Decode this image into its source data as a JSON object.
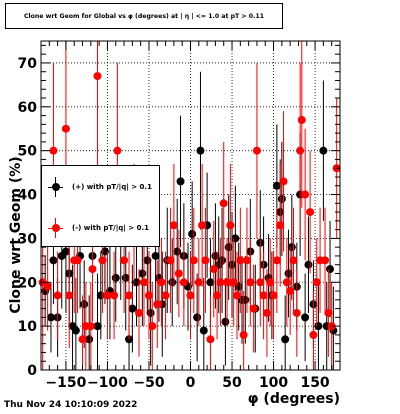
{
  "title": "Clone wrt Geom for Global vs φ (degrees) at |  η | <= 1.0 at pT > 0.11",
  "timestamp": "Thu Nov 24 10:10:09 2022",
  "chart_data": {
    "type": "scatter",
    "title": "Clone wrt Geom for Global vs φ (degrees) at |  η | <= 1.0 at pT > 0.11",
    "xlabel": "φ (degrees)",
    "ylabel": "Clone wrt Geom (%)",
    "xlim": [
      -180,
      180
    ],
    "ylim": [
      0,
      75
    ],
    "xticks": [
      -150,
      -100,
      -50,
      0,
      50,
      100,
      150
    ],
    "yticks": [
      0,
      10,
      20,
      30,
      40,
      50,
      60,
      70
    ],
    "grid": true,
    "legend_position": "left-middle",
    "series": [
      {
        "name": "(+) with pT/|q| > 0.1",
        "color": "#000000",
        "points": [
          {
            "x": -175,
            "y": 18,
            "err": 8
          },
          {
            "x": -168,
            "y": 12,
            "err": 8
          },
          {
            "x": -165,
            "y": 25,
            "err": 10
          },
          {
            "x": -160,
            "y": 12,
            "err": 9
          },
          {
            "x": -155,
            "y": 26,
            "err": 12
          },
          {
            "x": -150,
            "y": 27,
            "err": 14
          },
          {
            "x": -146,
            "y": 22,
            "err": 12
          },
          {
            "x": -142,
            "y": 10,
            "err": 14
          },
          {
            "x": -138,
            "y": 9,
            "err": 12
          },
          {
            "x": -133,
            "y": 26,
            "err": 12
          },
          {
            "x": -128,
            "y": 15,
            "err": 10
          },
          {
            "x": -122,
            "y": 7,
            "err": 10
          },
          {
            "x": -118,
            "y": 26,
            "err": 12
          },
          {
            "x": -112,
            "y": 10,
            "err": 12
          },
          {
            "x": -108,
            "y": 17,
            "err": 10
          },
          {
            "x": -103,
            "y": 27,
            "err": 12
          },
          {
            "x": -97,
            "y": 18,
            "err": 11
          },
          {
            "x": -90,
            "y": 21,
            "err": 10
          },
          {
            "x": -84,
            "y": 31,
            "err": 15
          },
          {
            "x": -78,
            "y": 21,
            "err": 12
          },
          {
            "x": -74,
            "y": 7,
            "err": 12
          },
          {
            "x": -70,
            "y": 14,
            "err": 10
          },
          {
            "x": -65,
            "y": 20,
            "err": 10
          },
          {
            "x": -58,
            "y": 22,
            "err": 12
          },
          {
            "x": -52,
            "y": 25,
            "err": 12
          },
          {
            "x": -48,
            "y": 13,
            "err": 12
          },
          {
            "x": -42,
            "y": 26,
            "err": 12
          },
          {
            "x": -38,
            "y": 21,
            "err": 10
          },
          {
            "x": -34,
            "y": 15,
            "err": 12
          },
          {
            "x": -28,
            "y": 25,
            "err": 12
          },
          {
            "x": -22,
            "y": 20,
            "err": 10
          },
          {
            "x": -16,
            "y": 27,
            "err": 12
          },
          {
            "x": -12,
            "y": 43,
            "err": 15
          },
          {
            "x": -8,
            "y": 26,
            "err": 12
          },
          {
            "x": -3,
            "y": 19,
            "err": 10
          },
          {
            "x": 2,
            "y": 31,
            "err": 12
          },
          {
            "x": 8,
            "y": 12,
            "err": 10
          },
          {
            "x": 12,
            "y": 50,
            "err": 18
          },
          {
            "x": 16,
            "y": 9,
            "err": 12
          },
          {
            "x": 20,
            "y": 33,
            "err": 12
          },
          {
            "x": 24,
            "y": 20,
            "err": 10
          },
          {
            "x": 30,
            "y": 26,
            "err": 12
          },
          {
            "x": 34,
            "y": 24,
            "err": 11
          },
          {
            "x": 38,
            "y": 25,
            "err": 12
          },
          {
            "x": 42,
            "y": 11,
            "err": 10
          },
          {
            "x": 46,
            "y": 28,
            "err": 12
          },
          {
            "x": 50,
            "y": 24,
            "err": 12
          },
          {
            "x": 54,
            "y": 30,
            "err": 12
          },
          {
            "x": 58,
            "y": 19,
            "err": 10
          },
          {
            "x": 62,
            "y": 16,
            "err": 10
          },
          {
            "x": 66,
            "y": 16,
            "err": 10
          },
          {
            "x": 72,
            "y": 27,
            "err": 12
          },
          {
            "x": 78,
            "y": 14,
            "err": 10
          },
          {
            "x": 84,
            "y": 29,
            "err": 12
          },
          {
            "x": 88,
            "y": 24,
            "err": 11
          },
          {
            "x": 94,
            "y": 21,
            "err": 10
          },
          {
            "x": 98,
            "y": 17,
            "err": 10
          },
          {
            "x": 104,
            "y": 42,
            "err": 14
          },
          {
            "x": 108,
            "y": 36,
            "err": 12
          },
          {
            "x": 110,
            "y": 39,
            "err": 13
          },
          {
            "x": 114,
            "y": 7,
            "err": 10
          },
          {
            "x": 118,
            "y": 22,
            "err": 10
          },
          {
            "x": 122,
            "y": 28,
            "err": 12
          },
          {
            "x": 128,
            "y": 19,
            "err": 10
          },
          {
            "x": 132,
            "y": 40,
            "err": 14
          },
          {
            "x": 138,
            "y": 12,
            "err": 10
          },
          {
            "x": 142,
            "y": 24,
            "err": 11
          },
          {
            "x": 148,
            "y": 15,
            "err": 10
          },
          {
            "x": 154,
            "y": 10,
            "err": 10
          },
          {
            "x": 160,
            "y": 50,
            "err": 16
          },
          {
            "x": 164,
            "y": 10,
            "err": 10
          },
          {
            "x": 168,
            "y": 23,
            "err": 11
          },
          {
            "x": 172,
            "y": 9,
            "err": 10
          }
        ]
      },
      {
        "name": "(-) with pT/|q| > 0.1",
        "color": "#ff0000",
        "points": [
          {
            "x": -178,
            "y": 20,
            "err": 22
          },
          {
            "x": -172,
            "y": 19,
            "err": 10
          },
          {
            "x": -165,
            "y": 50,
            "err": 20
          },
          {
            "x": -160,
            "y": 17,
            "err": 10
          },
          {
            "x": -150,
            "y": 55,
            "err": 20
          },
          {
            "x": -146,
            "y": 17,
            "err": 12
          },
          {
            "x": -140,
            "y": 25,
            "err": 12
          },
          {
            "x": -136,
            "y": 25,
            "err": 12
          },
          {
            "x": -130,
            "y": 7,
            "err": 10
          },
          {
            "x": -126,
            "y": 10,
            "err": 10
          },
          {
            "x": -120,
            "y": 10,
            "err": 10
          },
          {
            "x": -118,
            "y": 23,
            "err": 12
          },
          {
            "x": -112,
            "y": 67,
            "err": 22
          },
          {
            "x": -106,
            "y": 25,
            "err": 12
          },
          {
            "x": -100,
            "y": 17,
            "err": 10
          },
          {
            "x": -92,
            "y": 17,
            "err": 10
          },
          {
            "x": -88,
            "y": 50,
            "err": 20
          },
          {
            "x": -80,
            "y": 25,
            "err": 12
          },
          {
            "x": -74,
            "y": 17,
            "err": 10
          },
          {
            "x": -68,
            "y": 33,
            "err": 14
          },
          {
            "x": -62,
            "y": 13,
            "err": 10
          },
          {
            "x": -56,
            "y": 20,
            "err": 10
          },
          {
            "x": -50,
            "y": 17,
            "err": 10
          },
          {
            "x": -46,
            "y": 10,
            "err": 10
          },
          {
            "x": -40,
            "y": 15,
            "err": 10
          },
          {
            "x": -35,
            "y": 20,
            "err": 10
          },
          {
            "x": -30,
            "y": 17,
            "err": 10
          },
          {
            "x": -24,
            "y": 25,
            "err": 12
          },
          {
            "x": -20,
            "y": 33,
            "err": 14
          },
          {
            "x": -14,
            "y": 22,
            "err": 10
          },
          {
            "x": -8,
            "y": 20,
            "err": 10
          },
          {
            "x": 0,
            "y": 17,
            "err": 10
          },
          {
            "x": 4,
            "y": 25,
            "err": 12
          },
          {
            "x": 10,
            "y": 20,
            "err": 10
          },
          {
            "x": 14,
            "y": 33,
            "err": 14
          },
          {
            "x": 18,
            "y": 25,
            "err": 12
          },
          {
            "x": 24,
            "y": 7,
            "err": 10
          },
          {
            "x": 28,
            "y": 23,
            "err": 11
          },
          {
            "x": 32,
            "y": 17,
            "err": 10
          },
          {
            "x": 36,
            "y": 20,
            "err": 10
          },
          {
            "x": 40,
            "y": 38,
            "err": 14
          },
          {
            "x": 44,
            "y": 20,
            "err": 10
          },
          {
            "x": 48,
            "y": 33,
            "err": 14
          },
          {
            "x": 52,
            "y": 20,
            "err": 10
          },
          {
            "x": 56,
            "y": 17,
            "err": 10
          },
          {
            "x": 60,
            "y": 25,
            "err": 12
          },
          {
            "x": 64,
            "y": 8,
            "err": 10
          },
          {
            "x": 68,
            "y": 25,
            "err": 12
          },
          {
            "x": 72,
            "y": 20,
            "err": 10
          },
          {
            "x": 76,
            "y": 14,
            "err": 10
          },
          {
            "x": 80,
            "y": 50,
            "err": 20
          },
          {
            "x": 84,
            "y": 20,
            "err": 10
          },
          {
            "x": 88,
            "y": 17,
            "err": 10
          },
          {
            "x": 92,
            "y": 13,
            "err": 10
          },
          {
            "x": 96,
            "y": 20,
            "err": 10
          },
          {
            "x": 100,
            "y": 17,
            "err": 10
          },
          {
            "x": 104,
            "y": 25,
            "err": 12
          },
          {
            "x": 108,
            "y": 33,
            "err": 14
          },
          {
            "x": 112,
            "y": 43,
            "err": 16
          },
          {
            "x": 116,
            "y": 20,
            "err": 10
          },
          {
            "x": 120,
            "y": 18,
            "err": 10
          },
          {
            "x": 124,
            "y": 25,
            "err": 12
          },
          {
            "x": 128,
            "y": 13,
            "err": 10
          },
          {
            "x": 132,
            "y": 50,
            "err": 20
          },
          {
            "x": 134,
            "y": 57,
            "err": 20
          },
          {
            "x": 138,
            "y": 40,
            "err": 15
          },
          {
            "x": 144,
            "y": 36,
            "err": 14
          },
          {
            "x": 148,
            "y": 8,
            "err": 10
          },
          {
            "x": 152,
            "y": 20,
            "err": 10
          },
          {
            "x": 156,
            "y": 25,
            "err": 12
          },
          {
            "x": 162,
            "y": 25,
            "err": 12
          },
          {
            "x": 166,
            "y": 13,
            "err": 10
          },
          {
            "x": 170,
            "y": 10,
            "err": 10
          },
          {
            "x": 176,
            "y": 46,
            "err": 16
          }
        ]
      }
    ]
  }
}
